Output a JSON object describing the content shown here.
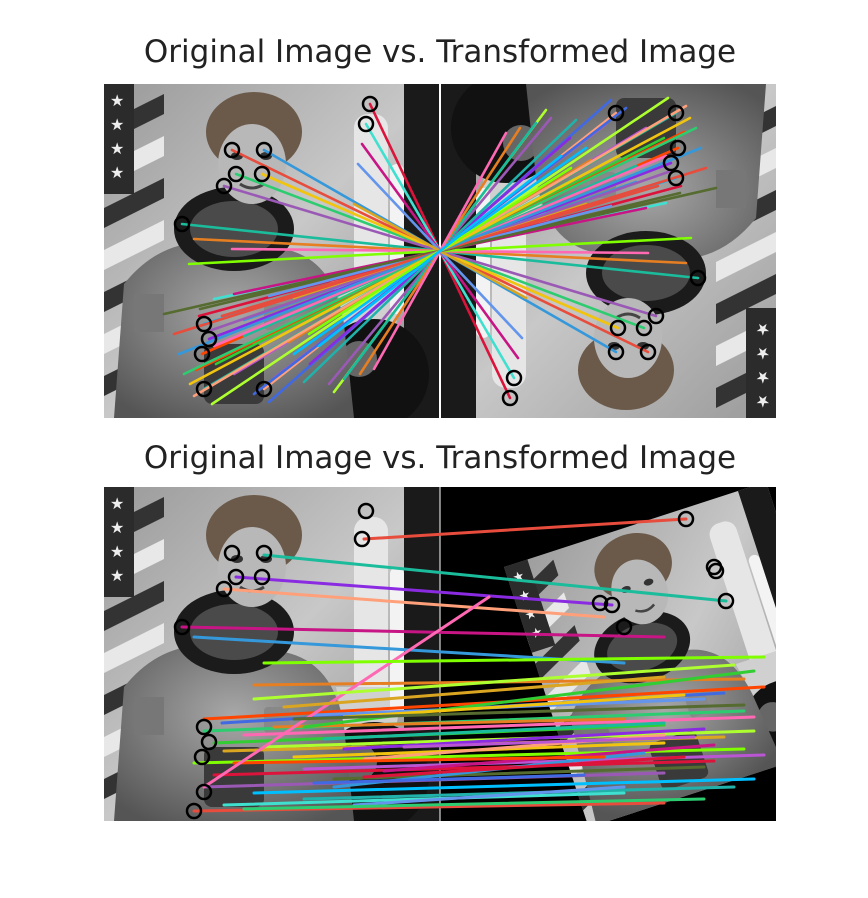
{
  "panels": [
    {
      "title": "Original Image vs. Transformed Image",
      "transform": "rotate-180",
      "match_lines": 58
    },
    {
      "title": "Original Image vs. Transformed Image",
      "transform": "rotate-scale",
      "match_lines": 44
    }
  ],
  "colors": {
    "background": "#ffffff",
    "title_text": "#222222",
    "keypoint_ring": "#000000"
  },
  "icons": {
    "keypoint": "keypoint-ring-icon"
  }
}
